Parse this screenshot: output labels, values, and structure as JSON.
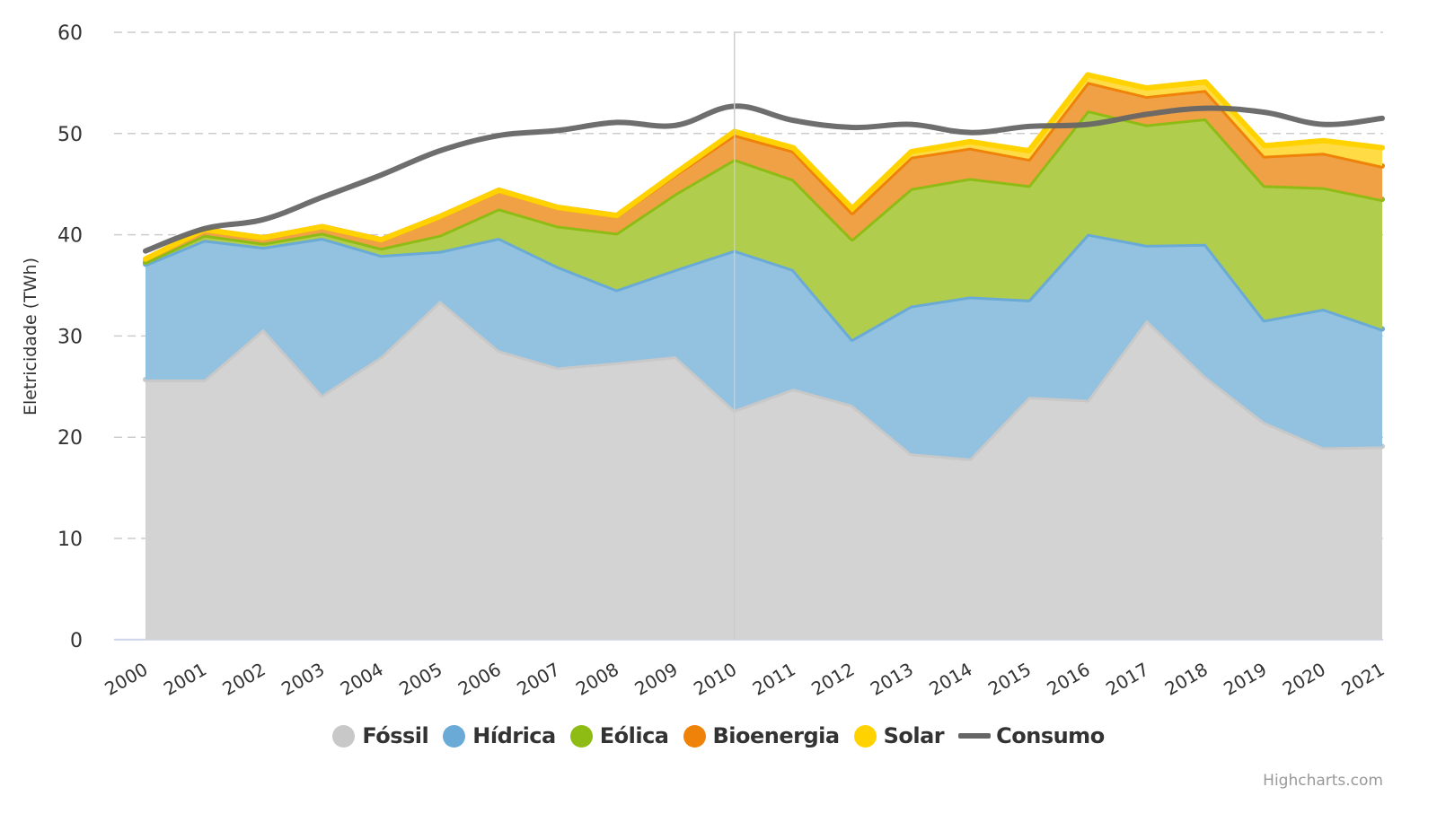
{
  "chart_data": {
    "type": "area",
    "stacked": true,
    "title": "",
    "xlabel": "",
    "ylabel": "Eletricidade (TWh)",
    "ylim": [
      0,
      60
    ],
    "yticks": [
      0,
      10,
      20,
      30,
      40,
      50,
      60
    ],
    "grid": true,
    "legend_position": "bottom-center",
    "categories": [
      "2000",
      "2001",
      "2002",
      "2003",
      "2004",
      "2005",
      "2006",
      "2007",
      "2008",
      "2009",
      "2010",
      "2011",
      "2012",
      "2013",
      "2014",
      "2015",
      "2016",
      "2017",
      "2018",
      "2019",
      "2020",
      "2021"
    ],
    "series": [
      {
        "name": "Fóssil",
        "type": "area",
        "color": "#c8c8c8",
        "fill": "#d3d3d3",
        "values": [
          25.7,
          25.7,
          30.7,
          24.2,
          28.0,
          33.5,
          28.6,
          26.9,
          27.4,
          28.0,
          22.7,
          24.8,
          23.2,
          18.4,
          17.9,
          24.0,
          23.7,
          31.6,
          26.0,
          21.5,
          19.0,
          19.1
        ]
      },
      {
        "name": "Hídrica",
        "type": "area",
        "color": "#6aaad6",
        "fill": "#93c1e0",
        "values": [
          11.4,
          13.8,
          8.1,
          15.5,
          10.0,
          4.9,
          11.1,
          10.0,
          7.2,
          8.6,
          15.8,
          11.8,
          6.5,
          14.6,
          16.0,
          9.6,
          16.4,
          7.4,
          13.1,
          10.1,
          13.7,
          11.6
        ]
      },
      {
        "name": "Eólica",
        "type": "area",
        "color": "#8fbc14",
        "fill": "#b0cd4e",
        "values": [
          0.2,
          0.5,
          0.4,
          0.5,
          0.7,
          1.6,
          2.9,
          4.0,
          5.6,
          7.5,
          9.0,
          8.9,
          9.9,
          11.6,
          11.7,
          11.3,
          12.2,
          11.9,
          12.4,
          13.3,
          12.0,
          12.8
        ]
      },
      {
        "name": "Bioenergia",
        "type": "area",
        "color": "#ef8208",
        "fill": "#f0a146",
        "values": [
          0.3,
          0.5,
          0.5,
          0.6,
          0.8,
          1.8,
          1.8,
          1.8,
          1.7,
          1.9,
          2.4,
          2.8,
          2.6,
          3.1,
          3.0,
          2.6,
          2.8,
          2.8,
          2.8,
          2.9,
          3.4,
          3.3
        ]
      },
      {
        "name": "Solar",
        "type": "area",
        "color": "#ffd200",
        "fill": "#ffdc45",
        "values": [
          0.0,
          0.0,
          0.0,
          0.0,
          0.0,
          0.0,
          0.0,
          0.0,
          0.0,
          0.1,
          0.3,
          0.3,
          0.4,
          0.5,
          0.6,
          0.8,
          0.7,
          0.8,
          0.8,
          1.0,
          1.2,
          1.8
        ]
      },
      {
        "name": "Consumo",
        "type": "line",
        "color": "#666666",
        "values": [
          38.4,
          40.6,
          41.5,
          43.7,
          45.9,
          48.3,
          49.8,
          50.3,
          51.1,
          50.8,
          52.7,
          51.3,
          50.6,
          50.9,
          50.1,
          50.7,
          50.9,
          51.9,
          52.5,
          52.1,
          50.9,
          51.5
        ]
      }
    ],
    "highlighted_category": "2010"
  },
  "credits": "Highcharts.com"
}
